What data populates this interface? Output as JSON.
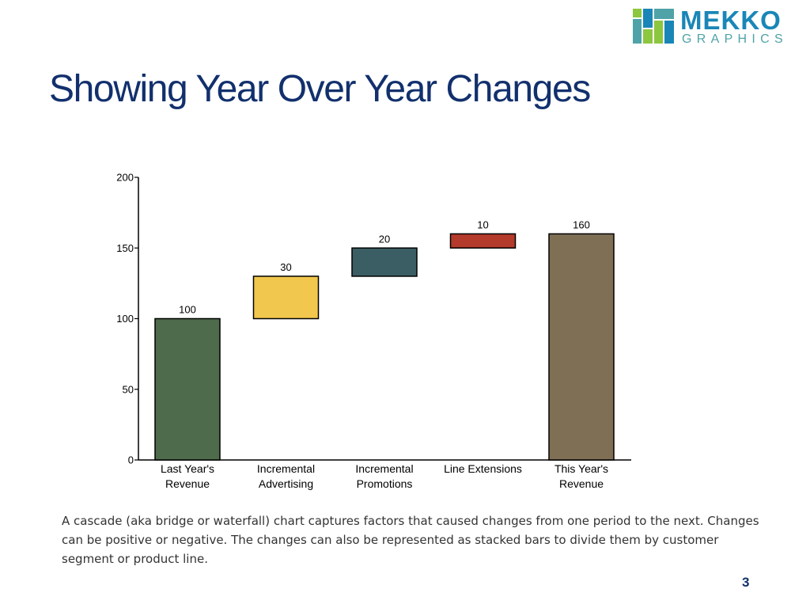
{
  "branding": {
    "logo_word": "MEKKO",
    "logo_sub": "GRAPHICS",
    "colors": {
      "blue": "#1a86b7",
      "teal": "#4fa3a8",
      "green": "#8dc63f"
    }
  },
  "slide": {
    "title": "Showing Year Over Year Changes",
    "caption": "A cascade (aka bridge or waterfall) chart captures factors that caused changes from one period to the next. Changes can be positive or negative. The changes can also be represented as stacked bars to divide them by customer segment or product line.",
    "page_number": "3"
  },
  "chart_data": {
    "type": "bar",
    "subtype": "waterfall",
    "categories": [
      [
        "Last Year's",
        "Revenue"
      ],
      [
        "Incremental",
        "Advertising"
      ],
      [
        "Incremental",
        "Promotions"
      ],
      [
        "Line Extensions"
      ],
      [
        "This Year's",
        "Revenue"
      ]
    ],
    "bars": [
      {
        "start": 0,
        "end": 100,
        "label": "100",
        "color": "#4e6b4b"
      },
      {
        "start": 100,
        "end": 130,
        "label": "30",
        "color": "#f1c74d"
      },
      {
        "start": 130,
        "end": 150,
        "label": "20",
        "color": "#3a5e63"
      },
      {
        "start": 150,
        "end": 160,
        "label": "10",
        "color": "#b43a2c"
      },
      {
        "start": 0,
        "end": 160,
        "label": "160",
        "color": "#7f6f55"
      }
    ],
    "ylim": [
      0,
      200
    ],
    "yticks": [
      0,
      50,
      100,
      150,
      200
    ],
    "title": "",
    "xlabel": "",
    "ylabel": ""
  }
}
